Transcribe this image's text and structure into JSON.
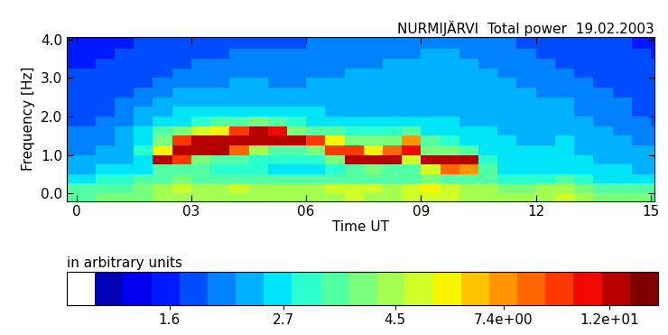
{
  "chart_data": {
    "type": "heatmap",
    "title": "NURMIJÄRVI  Total power  19.02.2003",
    "x_label": "Time UT",
    "y_label": "Frequency [Hz]",
    "xlim": [
      -0.25,
      15.1
    ],
    "xticks": [
      0,
      {
        "value": 3,
        "label": "03"
      },
      {
        "value": 6,
        "label": "06"
      },
      {
        "value": 9,
        "label": "09"
      },
      12,
      15
    ],
    "ylim": [
      -0.2,
      4.07
    ],
    "yticks": [
      {
        "value": 0,
        "label": "0.0"
      },
      {
        "value": 1,
        "label": "1.0"
      },
      {
        "value": 2,
        "label": "2.0"
      },
      {
        "value": 3,
        "label": "3.0"
      },
      {
        "value": 4,
        "label": "4.0"
      }
    ],
    "grid": false,
    "x_bins": [
      -0.5,
      0,
      0.5,
      1,
      1.5,
      2,
      2.5,
      3,
      3.5,
      4,
      4.5,
      5,
      5.5,
      6,
      6.5,
      7,
      7.5,
      8,
      8.5,
      9,
      9.5,
      10,
      10.5,
      11,
      11.5,
      12,
      12.5,
      13,
      13.5,
      14,
      14.5,
      15,
      15.5
    ],
    "y_bins": [
      -0.25,
      0,
      0.25,
      0.5,
      0.75,
      1.0,
      1.25,
      1.5,
      1.75,
      2.0,
      2.25,
      2.5,
      2.75,
      3.0,
      3.25,
      3.5,
      3.75,
      4.0,
      4.25
    ],
    "cells": [
      [
        3.5,
        3.5,
        3.8,
        4.0,
        3.8,
        4.2,
        4.5,
        4.5,
        4.2,
        4.5,
        4.2,
        4.5,
        4.5,
        4.2,
        4.5,
        4.8,
        4.5,
        4.5,
        4.8,
        5.0,
        4.8,
        4.5,
        4.5,
        4.5,
        4.2,
        4.5,
        4.8,
        4.2,
        4.0,
        3.8,
        3.8,
        3.5
      ],
      [
        3.2,
        3.2,
        3.5,
        3.5,
        3.8,
        4.5,
        5.0,
        4.5,
        4.5,
        4.8,
        4.5,
        4.5,
        4.5,
        4.5,
        4.8,
        5.0,
        4.8,
        4.5,
        5.0,
        5.5,
        5.0,
        4.5,
        4.2,
        4.0,
        4.0,
        4.2,
        4.5,
        3.8,
        3.5,
        3.5,
        3.2,
        3.2
      ],
      [
        2.8,
        2.8,
        3.0,
        3.0,
        3.2,
        3.5,
        3.8,
        3.5,
        3.5,
        3.5,
        3.5,
        3.2,
        3.2,
        3.2,
        3.5,
        3.5,
        3.5,
        3.5,
        3.5,
        3.8,
        3.5,
        3.2,
        3.2,
        3.0,
        3.0,
        3.0,
        3.2,
        3.0,
        2.8,
        2.8,
        2.7,
        2.7
      ],
      [
        2.4,
        2.4,
        2.5,
        2.6,
        2.8,
        3.2,
        3.5,
        3.2,
        3.0,
        3.0,
        3.0,
        2.8,
        2.8,
        2.8,
        3.0,
        3.5,
        3.8,
        3.5,
        3.5,
        5.0,
        8.0,
        7.0,
        3.2,
        2.8,
        2.7,
        2.7,
        2.8,
        2.6,
        2.5,
        2.5,
        2.4,
        2.4
      ],
      [
        2.2,
        2.2,
        2.3,
        2.4,
        2.8,
        12,
        10,
        4.0,
        3.5,
        3.2,
        3.0,
        3.0,
        3.0,
        3.0,
        3.8,
        13,
        13,
        12,
        5.0,
        13,
        13,
        12,
        3.0,
        2.7,
        2.6,
        2.6,
        2.7,
        2.5,
        2.4,
        2.4,
        2.3,
        2.3
      ],
      [
        2.1,
        2.1,
        2.2,
        2.4,
        3.0,
        6.0,
        13,
        13,
        13,
        8.0,
        4.5,
        3.5,
        3.5,
        4.0,
        9.0,
        10,
        6.0,
        8.0,
        11,
        4.0,
        4.0,
        3.5,
        2.8,
        2.6,
        2.5,
        2.5,
        2.6,
        2.4,
        2.3,
        2.3,
        2.2,
        2.2
      ],
      [
        2.0,
        2.0,
        2.1,
        2.3,
        2.8,
        4.0,
        9.0,
        13,
        13,
        12,
        13,
        13,
        12,
        10,
        6.0,
        4.0,
        3.8,
        4.0,
        7.0,
        3.2,
        3.0,
        2.8,
        2.6,
        2.5,
        2.4,
        2.4,
        2.5,
        2.3,
        2.2,
        2.2,
        2.1,
        2.1
      ],
      [
        2.0,
        2.0,
        2.0,
        2.2,
        2.5,
        3.2,
        3.8,
        5.0,
        6.0,
        9.0,
        13,
        11,
        4.0,
        3.5,
        3.2,
        3.0,
        3.0,
        3.0,
        3.2,
        2.8,
        2.7,
        2.6,
        2.5,
        2.4,
        2.3,
        2.4,
        2.4,
        2.2,
        2.2,
        2.1,
        2.0,
        2.0
      ],
      [
        1.9,
        1.9,
        2.0,
        2.1,
        2.3,
        2.6,
        2.8,
        3.0,
        3.2,
        3.2,
        4.0,
        3.5,
        2.9,
        2.8,
        2.7,
        2.6,
        2.6,
        2.6,
        2.6,
        2.5,
        2.5,
        2.4,
        2.4,
        2.3,
        2.3,
        2.3,
        2.3,
        2.2,
        2.1,
        2.0,
        2.0,
        1.9
      ],
      [
        1.9,
        1.9,
        1.9,
        2.0,
        2.2,
        2.4,
        2.5,
        2.6,
        2.6,
        2.6,
        2.6,
        2.5,
        2.5,
        2.5,
        2.4,
        2.4,
        2.4,
        2.4,
        2.4,
        2.4,
        2.4,
        2.4,
        2.3,
        2.3,
        2.2,
        2.2,
        2.2,
        2.1,
        2.1,
        2.0,
        1.9,
        1.9
      ],
      [
        1.8,
        1.8,
        1.9,
        2.0,
        2.1,
        2.2,
        2.3,
        2.3,
        2.3,
        2.3,
        2.3,
        2.3,
        2.3,
        2.3,
        2.3,
        2.3,
        2.3,
        2.3,
        2.3,
        2.3,
        2.4,
        2.4,
        2.3,
        2.2,
        2.2,
        2.2,
        2.2,
        2.1,
        2.0,
        2.0,
        1.9,
        1.9
      ],
      [
        1.8,
        1.8,
        1.8,
        1.9,
        2.0,
        2.1,
        2.2,
        2.2,
        2.2,
        2.3,
        2.2,
        2.2,
        2.2,
        2.2,
        2.2,
        2.3,
        2.3,
        2.3,
        2.3,
        2.3,
        2.4,
        2.3,
        2.3,
        2.2,
        2.2,
        2.1,
        2.1,
        2.0,
        2.0,
        1.9,
        1.9,
        1.8
      ],
      [
        1.7,
        1.7,
        1.8,
        1.8,
        1.9,
        2.0,
        2.1,
        2.1,
        2.1,
        2.2,
        2.2,
        2.1,
        2.1,
        2.2,
        2.2,
        2.2,
        2.2,
        2.3,
        2.3,
        2.3,
        2.3,
        2.3,
        2.2,
        2.2,
        2.1,
        2.1,
        2.0,
        2.0,
        1.9,
        1.9,
        1.8,
        1.8
      ],
      [
        1.7,
        1.7,
        1.7,
        1.8,
        1.9,
        1.9,
        2.0,
        2.0,
        2.0,
        2.1,
        2.1,
        2.1,
        2.1,
        2.1,
        2.1,
        2.2,
        2.2,
        2.2,
        2.2,
        2.3,
        2.3,
        2.2,
        2.2,
        2.1,
        2.1,
        2.0,
        2.0,
        1.9,
        1.9,
        1.8,
        1.8,
        1.7
      ],
      [
        1.6,
        1.6,
        1.7,
        1.7,
        1.8,
        1.9,
        1.9,
        2.0,
        2.0,
        2.0,
        2.0,
        2.0,
        2.0,
        2.0,
        2.1,
        2.1,
        2.1,
        2.2,
        2.2,
        2.2,
        2.2,
        2.2,
        2.1,
        2.1,
        2.0,
        2.0,
        1.9,
        1.9,
        1.8,
        1.8,
        1.7,
        1.7
      ],
      [
        1.6,
        1.6,
        1.6,
        1.7,
        1.8,
        1.8,
        1.9,
        1.9,
        1.9,
        2.0,
        2.0,
        2.0,
        2.0,
        2.0,
        2.0,
        2.1,
        2.1,
        2.1,
        2.1,
        2.2,
        2.2,
        2.1,
        2.1,
        2.0,
        2.0,
        1.9,
        1.9,
        1.8,
        1.8,
        1.7,
        1.7,
        1.6
      ],
      [
        1.6,
        1.6,
        1.6,
        1.6,
        1.7,
        1.8,
        1.8,
        1.9,
        1.9,
        1.9,
        1.9,
        1.9,
        1.9,
        2.0,
        2.0,
        2.0,
        2.0,
        2.1,
        2.1,
        2.1,
        2.1,
        2.1,
        2.0,
        2.0,
        1.9,
        1.9,
        1.8,
        1.8,
        1.7,
        1.7,
        1.6,
        1.6
      ],
      [
        1.6,
        1.6,
        1.6,
        1.6,
        1.7,
        1.8,
        1.8,
        1.9,
        1.9,
        1.9,
        1.9,
        1.9,
        1.9,
        2.0,
        2.0,
        2.0,
        2.0,
        2.1,
        2.1,
        2.1,
        2.1,
        2.1,
        2.0,
        2.0,
        1.9,
        1.9,
        1.8,
        1.8,
        1.7,
        1.7,
        1.6,
        1.6
      ]
    ],
    "colorbar": {
      "label": "in arbitrary units",
      "range": [
        1,
        15
      ],
      "ticks": [
        1.6,
        2.7,
        4.5,
        {
          "value": 7.4,
          "label": "7.4e+00"
        },
        {
          "value": 12,
          "label": "1.2e+01"
        }
      ]
    }
  }
}
